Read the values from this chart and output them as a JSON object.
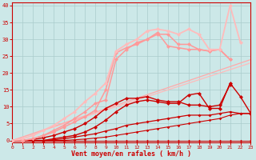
{
  "xlabel": "Vent moyen/en rafales ( km/h )",
  "xlim": [
    0,
    23
  ],
  "ylim": [
    -0.5,
    41
  ],
  "xticks": [
    0,
    1,
    2,
    3,
    4,
    5,
    6,
    7,
    8,
    9,
    10,
    11,
    12,
    13,
    14,
    15,
    16,
    17,
    18,
    19,
    20,
    21,
    22,
    23
  ],
  "yticks": [
    0,
    5,
    10,
    15,
    20,
    25,
    30,
    35,
    40
  ],
  "bg": "#cce8e8",
  "grid_color": "#aacccc",
  "axis_color": "#cc0000",
  "lines": [
    {
      "x": [
        0,
        23
      ],
      "y": [
        0,
        23
      ],
      "color": "#ffbbbb",
      "lw": 0.9,
      "marker": null,
      "ms": 0
    },
    {
      "x": [
        0,
        23
      ],
      "y": [
        0,
        24
      ],
      "color": "#ffaaaa",
      "lw": 0.9,
      "marker": null,
      "ms": 0
    },
    {
      "x": [
        0,
        1,
        2,
        3,
        4,
        5,
        6,
        7,
        8,
        9,
        10,
        11,
        12,
        13,
        14,
        15,
        16,
        17,
        18,
        19,
        20,
        21,
        22,
        23
      ],
      "y": [
        0,
        0,
        0,
        0,
        0,
        0,
        0,
        0,
        0,
        0,
        0,
        0,
        0,
        0,
        0,
        0,
        0,
        0,
        0,
        0,
        0,
        0,
        0,
        0
      ],
      "color": "#cc0000",
      "lw": 0.8,
      "marker": "D",
      "ms": 1.8
    },
    {
      "x": [
        0,
        1,
        2,
        3,
        4,
        5,
        6,
        7,
        8,
        9,
        10,
        11,
        12,
        13,
        14,
        15,
        16,
        17,
        18,
        19,
        20,
        21,
        22,
        23
      ],
      "y": [
        0,
        0,
        0,
        0,
        0,
        0,
        0.2,
        0.4,
        0.7,
        1.0,
        1.5,
        2.0,
        2.5,
        3.0,
        3.5,
        4.0,
        4.5,
        5.0,
        5.5,
        6.0,
        6.5,
        7.5,
        8.0,
        8.0
      ],
      "color": "#cc0000",
      "lw": 0.8,
      "marker": "D",
      "ms": 1.8
    },
    {
      "x": [
        0,
        1,
        2,
        3,
        4,
        5,
        6,
        7,
        8,
        9,
        10,
        11,
        12,
        13,
        14,
        15,
        16,
        17,
        18,
        19,
        20,
        21,
        22,
        23
      ],
      "y": [
        0,
        0,
        0,
        0,
        0.2,
        0.5,
        1.0,
        1.5,
        2.0,
        2.8,
        3.5,
        4.5,
        5.0,
        5.5,
        6.0,
        6.5,
        7.0,
        7.5,
        7.5,
        7.5,
        8.0,
        8.5,
        8.0,
        8.0
      ],
      "color": "#cc0000",
      "lw": 0.9,
      "marker": "D",
      "ms": 2.0
    },
    {
      "x": [
        0,
        1,
        2,
        3,
        4,
        5,
        6,
        7,
        8,
        9,
        10,
        11,
        12,
        13,
        14,
        15,
        16,
        17,
        18,
        19,
        20,
        21,
        22,
        23
      ],
      "y": [
        0,
        0,
        0,
        0,
        0.5,
        1.0,
        1.5,
        2.5,
        4.0,
        6.0,
        8.5,
        10.5,
        11.5,
        12.0,
        11.5,
        11.0,
        11.0,
        13.5,
        14.0,
        9.5,
        9.5,
        17.0,
        13.0,
        8.0
      ],
      "color": "#cc0000",
      "lw": 1.0,
      "marker": "D",
      "ms": 2.5
    },
    {
      "x": [
        0,
        1,
        2,
        3,
        4,
        5,
        6,
        7,
        8,
        9,
        10,
        11,
        12,
        13,
        14,
        15,
        16,
        17,
        18,
        19,
        20,
        21
      ],
      "y": [
        0,
        0,
        0.3,
        0.8,
        1.5,
        2.5,
        3.5,
        5.0,
        7.0,
        9.5,
        11.0,
        12.5,
        12.5,
        13.0,
        12.0,
        11.5,
        11.5,
        10.5,
        10.5,
        10.0,
        10.5,
        16.5
      ],
      "color": "#cc0000",
      "lw": 1.0,
      "marker": "D",
      "ms": 2.5
    },
    {
      "x": [
        0,
        1,
        2,
        3,
        4,
        5,
        6,
        7,
        8,
        9,
        10,
        11,
        12,
        13,
        14,
        15,
        16,
        17,
        18,
        19,
        20,
        21
      ],
      "y": [
        0,
        0,
        0.5,
        1.5,
        2.5,
        4.0,
        5.5,
        7.0,
        9.0,
        15.0,
        26.0,
        27.5,
        28.5,
        30.0,
        32.0,
        28.0,
        27.5,
        27.0,
        27.0,
        26.5,
        27.0,
        24.0
      ],
      "color": "#ff9999",
      "lw": 1.1,
      "marker": "D",
      "ms": 2.5
    },
    {
      "x": [
        0,
        1,
        2,
        3,
        4,
        5,
        6,
        7,
        8,
        9,
        10,
        11,
        12,
        13,
        14,
        15,
        16,
        17,
        18,
        19,
        20,
        21
      ],
      "y": [
        0,
        0,
        0.5,
        1.5,
        3.0,
        4.5,
        6.5,
        8.5,
        11.0,
        12.0,
        24.0,
        27.0,
        29.0,
        30.0,
        31.5,
        31.5,
        28.5,
        28.5,
        27.0,
        26.5,
        27.0,
        24.0
      ],
      "color": "#ff9999",
      "lw": 1.1,
      "marker": "D",
      "ms": 2.5
    },
    {
      "x": [
        0,
        1,
        2,
        3,
        4,
        5,
        6,
        7,
        8,
        9,
        10,
        11,
        12,
        13,
        14,
        15,
        16,
        17,
        18,
        19,
        20,
        21,
        22
      ],
      "y": [
        0,
        0.5,
        1.5,
        3.0,
        4.5,
        6.5,
        8.5,
        11.5,
        14.0,
        17.0,
        26.5,
        28.5,
        30.0,
        32.5,
        33.0,
        32.5,
        31.5,
        33.0,
        31.5,
        27.0,
        27.0,
        40.0,
        29.0
      ],
      "color": "#ffbbbb",
      "lw": 1.3,
      "marker": "D",
      "ms": 2.5
    }
  ]
}
